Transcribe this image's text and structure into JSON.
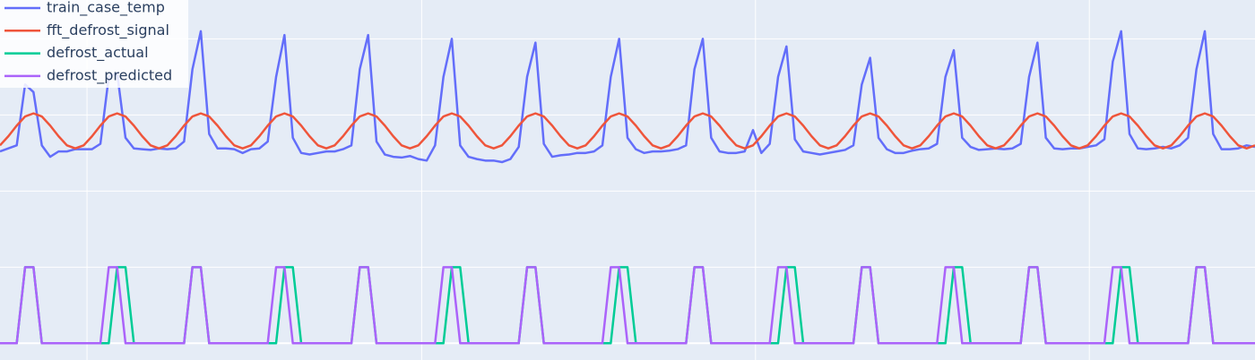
{
  "chart_data": {
    "type": "line",
    "x": [
      0,
      1,
      2,
      3,
      4,
      5,
      6,
      7,
      8,
      9,
      10,
      11,
      12,
      13,
      14,
      15,
      16,
      17,
      18,
      19,
      20,
      21,
      22,
      23,
      24,
      25,
      26,
      27,
      28,
      29,
      30,
      31,
      32,
      33,
      34,
      35,
      36,
      37,
      38,
      39,
      40,
      41,
      42,
      43,
      44,
      45,
      46,
      47,
      48,
      49,
      50,
      51,
      52,
      53,
      54,
      55,
      56,
      57,
      58,
      59,
      60,
      61,
      62,
      63,
      64,
      65,
      66,
      67,
      68,
      69,
      70,
      71,
      72,
      73,
      74,
      75,
      76,
      77,
      78,
      79,
      80,
      81,
      82,
      83,
      84,
      85,
      86,
      87,
      88,
      89,
      90,
      91,
      92,
      93,
      94,
      95,
      96,
      97,
      98,
      99,
      100,
      101,
      102,
      103,
      104,
      105,
      106,
      107,
      108,
      109,
      110,
      111,
      112,
      113,
      114,
      115,
      116,
      117,
      118,
      119,
      120,
      121,
      122,
      123,
      124,
      125,
      126,
      127,
      128,
      129,
      130,
      131,
      132,
      133,
      134,
      135,
      136,
      137,
      138,
      139,
      140,
      141,
      142,
      143,
      144,
      145,
      146,
      147,
      148,
      149,
      150
    ],
    "series": [
      {
        "name": "train_case_temp",
        "color": "#636efa",
        "values": [
          2.52,
          2.56,
          2.6,
          3.4,
          3.3,
          2.6,
          2.45,
          2.52,
          2.52,
          2.55,
          2.55,
          2.55,
          2.62,
          3.5,
          3.55,
          2.7,
          2.56,
          2.55,
          2.54,
          2.56,
          2.55,
          2.56,
          2.65,
          3.6,
          4.1,
          2.75,
          2.56,
          2.56,
          2.55,
          2.5,
          2.55,
          2.56,
          2.65,
          3.5,
          4.05,
          2.7,
          2.5,
          2.48,
          2.5,
          2.52,
          2.52,
          2.55,
          2.6,
          3.6,
          4.05,
          2.65,
          2.48,
          2.45,
          2.44,
          2.46,
          2.42,
          2.4,
          2.6,
          3.5,
          4.0,
          2.6,
          2.45,
          2.42,
          2.4,
          2.4,
          2.38,
          2.42,
          2.58,
          3.5,
          3.95,
          2.62,
          2.45,
          2.47,
          2.48,
          2.5,
          2.5,
          2.52,
          2.6,
          3.5,
          4.0,
          2.7,
          2.55,
          2.5,
          2.52,
          2.52,
          2.53,
          2.55,
          2.6,
          3.6,
          4.0,
          2.7,
          2.52,
          2.5,
          2.5,
          2.52,
          2.8,
          2.5,
          2.62,
          3.5,
          3.9,
          2.68,
          2.52,
          2.5,
          2.48,
          2.5,
          2.52,
          2.54,
          2.6,
          3.4,
          3.75,
          2.7,
          2.55,
          2.5,
          2.5,
          2.53,
          2.55,
          2.56,
          2.62,
          3.5,
          3.85,
          2.7,
          2.58,
          2.54,
          2.55,
          2.56,
          2.55,
          2.56,
          2.62,
          3.5,
          3.95,
          2.7,
          2.56,
          2.55,
          2.56,
          2.56,
          2.58,
          2.6,
          2.68,
          3.7,
          4.1,
          2.75,
          2.56,
          2.55,
          2.56,
          2.58,
          2.56,
          2.6,
          2.7,
          3.6,
          4.1,
          2.75,
          2.55,
          2.55,
          2.56,
          2.6,
          2.58
        ]
      },
      {
        "name": "fft_defrost_signal",
        "color": "#ef553b",
        "values": [
          2.6,
          2.72,
          2.86,
          2.98,
          3.02,
          2.98,
          2.86,
          2.72,
          2.6,
          2.56,
          2.6,
          2.72,
          2.86,
          2.98,
          3.02,
          2.98,
          2.86,
          2.72,
          2.6,
          2.56,
          2.6,
          2.72,
          2.86,
          2.98,
          3.02,
          2.98,
          2.86,
          2.72,
          2.6,
          2.56,
          2.6,
          2.72,
          2.86,
          2.98,
          3.02,
          2.98,
          2.86,
          2.72,
          2.6,
          2.56,
          2.6,
          2.72,
          2.86,
          2.98,
          3.02,
          2.98,
          2.86,
          2.72,
          2.6,
          2.56,
          2.6,
          2.72,
          2.86,
          2.98,
          3.02,
          2.98,
          2.86,
          2.72,
          2.6,
          2.56,
          2.6,
          2.72,
          2.86,
          2.98,
          3.02,
          2.98,
          2.86,
          2.72,
          2.6,
          2.56,
          2.6,
          2.72,
          2.86,
          2.98,
          3.02,
          2.98,
          2.86,
          2.72,
          2.6,
          2.56,
          2.6,
          2.72,
          2.86,
          2.98,
          3.02,
          2.98,
          2.86,
          2.72,
          2.6,
          2.56,
          2.6,
          2.72,
          2.86,
          2.98,
          3.02,
          2.98,
          2.86,
          2.72,
          2.6,
          2.56,
          2.6,
          2.72,
          2.86,
          2.98,
          3.02,
          2.98,
          2.86,
          2.72,
          2.6,
          2.56,
          2.6,
          2.72,
          2.86,
          2.98,
          3.02,
          2.98,
          2.86,
          2.72,
          2.6,
          2.56,
          2.6,
          2.72,
          2.86,
          2.98,
          3.02,
          2.98,
          2.86,
          2.72,
          2.6,
          2.56,
          2.6,
          2.72,
          2.86,
          2.98,
          3.02,
          2.98,
          2.86,
          2.72,
          2.6,
          2.56,
          2.6,
          2.72,
          2.86,
          2.98,
          3.02,
          2.98,
          2.86,
          2.72,
          2.6,
          2.56,
          2.6
        ]
      },
      {
        "name": "defrost_actual",
        "color": "#00cc96",
        "values": [
          0,
          0,
          0,
          1,
          1,
          0,
          0,
          0,
          0,
          0,
          0,
          0,
          0,
          0,
          1,
          1,
          0,
          0,
          0,
          0,
          0,
          0,
          0,
          1,
          1,
          0,
          0,
          0,
          0,
          0,
          0,
          0,
          0,
          0,
          1,
          1,
          0,
          0,
          0,
          0,
          0,
          0,
          0,
          1,
          1,
          0,
          0,
          0,
          0,
          0,
          0,
          0,
          0,
          0,
          1,
          1,
          0,
          0,
          0,
          0,
          0,
          0,
          0,
          1,
          1,
          0,
          0,
          0,
          0,
          0,
          0,
          0,
          0,
          0,
          1,
          1,
          0,
          0,
          0,
          0,
          0,
          0,
          0,
          1,
          1,
          0,
          0,
          0,
          0,
          0,
          0,
          0,
          0,
          0,
          1,
          1,
          0,
          0,
          0,
          0,
          0,
          0,
          0,
          1,
          1,
          0,
          0,
          0,
          0,
          0,
          0,
          0,
          0,
          0,
          1,
          1,
          0,
          0,
          0,
          0,
          0,
          0,
          0,
          1,
          1,
          0,
          0,
          0,
          0,
          0,
          0,
          0,
          0,
          0,
          1,
          1,
          0,
          0,
          0,
          0,
          0,
          0,
          0,
          1,
          1,
          0,
          0,
          0,
          0,
          0,
          0
        ]
      },
      {
        "name": "defrost_predicted",
        "color": "#ab63fa",
        "values": [
          0,
          0,
          0,
          1,
          1,
          0,
          0,
          0,
          0,
          0,
          0,
          0,
          0,
          1,
          1,
          0,
          0,
          0,
          0,
          0,
          0,
          0,
          0,
          1,
          1,
          0,
          0,
          0,
          0,
          0,
          0,
          0,
          0,
          1,
          1,
          0,
          0,
          0,
          0,
          0,
          0,
          0,
          0,
          1,
          1,
          0,
          0,
          0,
          0,
          0,
          0,
          0,
          0,
          1,
          1,
          0,
          0,
          0,
          0,
          0,
          0,
          0,
          0,
          1,
          1,
          0,
          0,
          0,
          0,
          0,
          0,
          0,
          0,
          1,
          1,
          0,
          0,
          0,
          0,
          0,
          0,
          0,
          0,
          1,
          1,
          0,
          0,
          0,
          0,
          0,
          0,
          0,
          0,
          1,
          1,
          0,
          0,
          0,
          0,
          0,
          0,
          0,
          0,
          1,
          1,
          0,
          0,
          0,
          0,
          0,
          0,
          0,
          0,
          1,
          1,
          0,
          0,
          0,
          0,
          0,
          0,
          0,
          0,
          1,
          1,
          0,
          0,
          0,
          0,
          0,
          0,
          0,
          0,
          1,
          1,
          0,
          0,
          0,
          0,
          0,
          0,
          0,
          0,
          1,
          1,
          0,
          0,
          0,
          0,
          0,
          0
        ]
      }
    ],
    "xlim": [
      0,
      150
    ],
    "ylim": [
      -0.22,
      4.51
    ],
    "xticks": [
      10.4,
      50.4,
      90.3,
      130.2
    ],
    "yticks": [
      0,
      1,
      2,
      3,
      4
    ],
    "grid": true,
    "legend": "top-left"
  }
}
